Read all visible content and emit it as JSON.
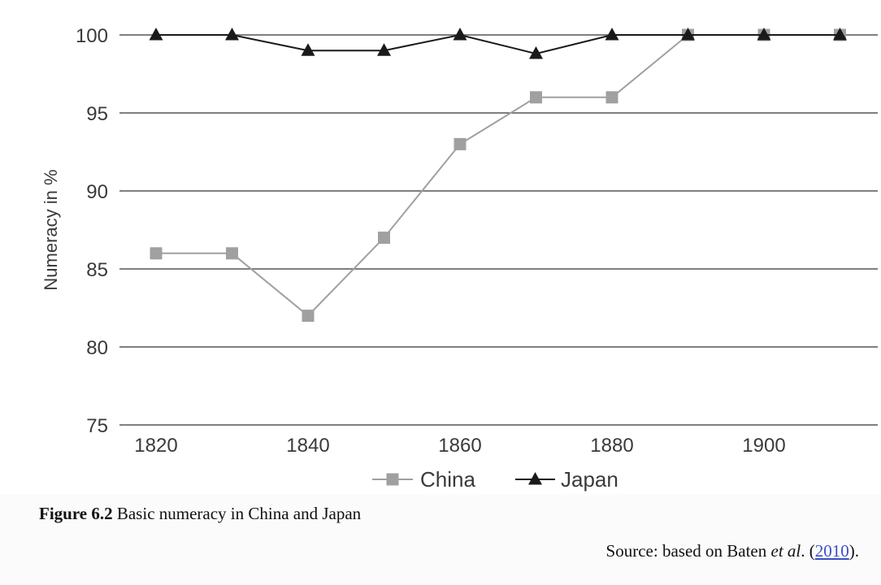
{
  "chart_data": {
    "type": "line",
    "title": "",
    "ylabel": "Numeracy in %",
    "xlabel": "",
    "ylim": [
      75,
      100
    ],
    "xlim": [
      1810,
      1915
    ],
    "yticks": [
      75,
      80,
      85,
      90,
      95,
      100
    ],
    "xticks": [
      1820,
      1840,
      1860,
      1880,
      1900
    ],
    "grid": "horizontal",
    "legend_position": "bottom",
    "series": [
      {
        "name": "China",
        "marker": "square",
        "color": "#a0a0a0",
        "x": [
          1820,
          1830,
          1840,
          1850,
          1860,
          1870,
          1880,
          1890,
          1900,
          1910
        ],
        "y": [
          86,
          86,
          82,
          87,
          93,
          96,
          96,
          100,
          100,
          100
        ]
      },
      {
        "name": "Japan",
        "marker": "triangle",
        "color": "#1a1a1a",
        "x": [
          1820,
          1830,
          1840,
          1850,
          1860,
          1870,
          1880,
          1890,
          1900,
          1910
        ],
        "y": [
          100,
          100,
          99,
          99,
          100,
          98.8,
          100,
          100,
          100,
          100
        ]
      }
    ]
  },
  "caption": {
    "label": "Figure 6.2",
    "text": " Basic numeracy in China and Japan"
  },
  "source": {
    "prefix": "Source: based on Baten ",
    "etal": "et al",
    "middle": ". (",
    "link_text": "2010",
    "suffix": ")."
  }
}
